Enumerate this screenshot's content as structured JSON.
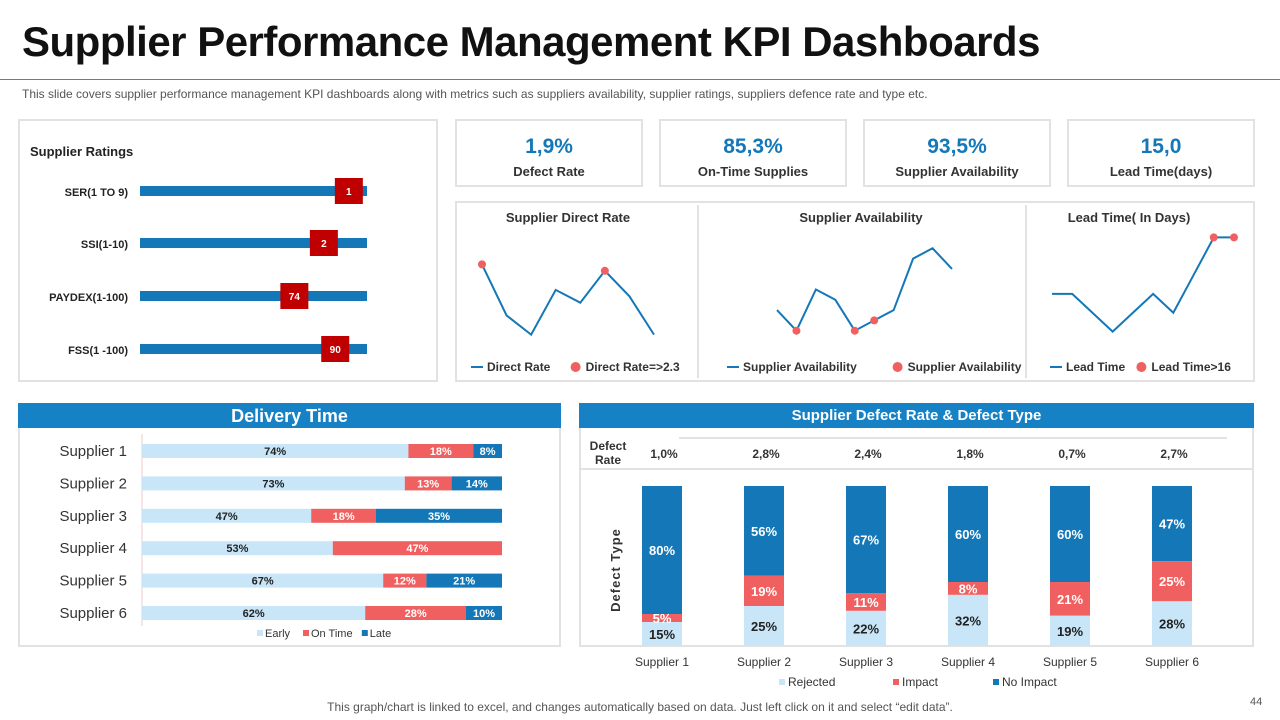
{
  "slide": {
    "title": "Supplier Performance Management KPI Dashboards",
    "subtitle": "This slide covers supplier performance  management KPI dashboards along with metrics such as suppliers availability, supplier ratings, suppliers defence rate and type etc.",
    "footer": "This graph/chart is linked to excel, and changes automatically based on data. Just left click on it and select “edit data”.",
    "page_number": "44"
  },
  "kpis": [
    {
      "value": "1,9%",
      "label": "Defect Rate"
    },
    {
      "value": "85,3%",
      "label": "On-Time Supplies"
    },
    {
      "value": "93,5%",
      "label": "Supplier Availability"
    },
    {
      "value": "15,0",
      "label": "Lead Time(days)"
    }
  ],
  "colors": {
    "blue": "#1681c4",
    "red": "#c00000",
    "salmon": "#f06060",
    "light_blue": "#c8e6f8",
    "line_blue": "#1478b8",
    "marker": "#f06060"
  },
  "chart_data": [
    {
      "id": "supplier-ratings",
      "type": "bar",
      "title": "Supplier Ratings",
      "categories": [
        "SER(1 TO 9)",
        "SSI(1-10)",
        "PAYDEX(1-100)",
        "FSS(1 -100)"
      ],
      "labels": [
        "1",
        "2",
        "74",
        "90"
      ],
      "values": [
        0.92,
        0.81,
        0.68,
        0.86
      ]
    },
    {
      "id": "supplier-direct-rate",
      "type": "line",
      "title": "Supplier Direct Rate",
      "series": [
        {
          "name": "Direct Rate",
          "values": [
            2.4,
            1.6,
            1.3,
            2.0,
            1.8,
            2.3,
            1.9,
            1.3
          ]
        }
      ],
      "legend": [
        "Direct Rate",
        "Direct Rate=>2.3"
      ],
      "marked_points": [
        0,
        5
      ]
    },
    {
      "id": "supplier-availability",
      "type": "line",
      "title": "Supplier Availability",
      "series": [
        {
          "name": "Supplier Availability",
          "values": [
            88,
            86,
            90,
            89,
            86,
            87,
            88,
            93,
            94,
            92
          ]
        }
      ],
      "legend": [
        "Supplier Availability",
        "Supplier Availability"
      ],
      "marked_points": [
        1,
        4,
        5
      ]
    },
    {
      "id": "lead-time",
      "type": "line",
      "title": "Lead Time( In Days)",
      "series": [
        {
          "name": "Lead Time",
          "values": [
            13,
            13,
            12,
            11,
            12,
            13,
            12,
            14,
            16,
            16
          ]
        }
      ],
      "legend": [
        "Lead Time",
        "Lead Time>16"
      ],
      "marked_points": [
        8,
        9
      ]
    },
    {
      "id": "delivery-time",
      "type": "bar",
      "title": "Delivery Time",
      "categories": [
        "Supplier 1",
        "Supplier 2",
        "Supplier 3",
        "Supplier 4",
        "Supplier 5",
        "Supplier 6"
      ],
      "series": [
        {
          "name": "Early",
          "values": [
            74,
            73,
            47,
            53,
            67,
            62
          ],
          "labels": [
            "74%",
            "73%",
            "47%",
            "53%",
            "67%",
            "62%"
          ]
        },
        {
          "name": "On Time",
          "values": [
            18,
            13,
            18,
            47,
            12,
            28
          ],
          "labels": [
            "18%",
            "13%",
            "18%",
            "47%",
            "12%",
            "28%"
          ]
        },
        {
          "name": "Late",
          "values": [
            8,
            14,
            35,
            0,
            21,
            10
          ],
          "labels": [
            "8%",
            "14%",
            "35%",
            "",
            "21%",
            "10%"
          ]
        }
      ]
    },
    {
      "id": "defect-rate-type",
      "type": "bar",
      "title": "Supplier Defect Rate & Defect Type",
      "ylabel": "Defect Type",
      "defect_rate_label": "Defect Rate",
      "categories": [
        "Supplier 1",
        "Supplier 2",
        "Supplier 3",
        "Supplier 4",
        "Supplier 5",
        "Supplier 6"
      ],
      "defect_rates": [
        "1,0%",
        "2,8%",
        "2,4%",
        "1,8%",
        "0,7%",
        "2,7%"
      ],
      "series": [
        {
          "name": "Rejected",
          "values": [
            15,
            25,
            22,
            32,
            19,
            28
          ],
          "labels": [
            "15%",
            "25%",
            "22%",
            "32%",
            "19%",
            "28%"
          ]
        },
        {
          "name": "Impact",
          "values": [
            5,
            19,
            11,
            8,
            21,
            25
          ],
          "labels": [
            "5%",
            "19%",
            "11%",
            "8%",
            "21%",
            "25%"
          ]
        },
        {
          "name": "No Impact",
          "values": [
            80,
            56,
            67,
            60,
            60,
            47
          ],
          "labels": [
            "80%",
            "56%",
            "67%",
            "60%",
            "60%",
            "47%"
          ]
        }
      ]
    }
  ]
}
